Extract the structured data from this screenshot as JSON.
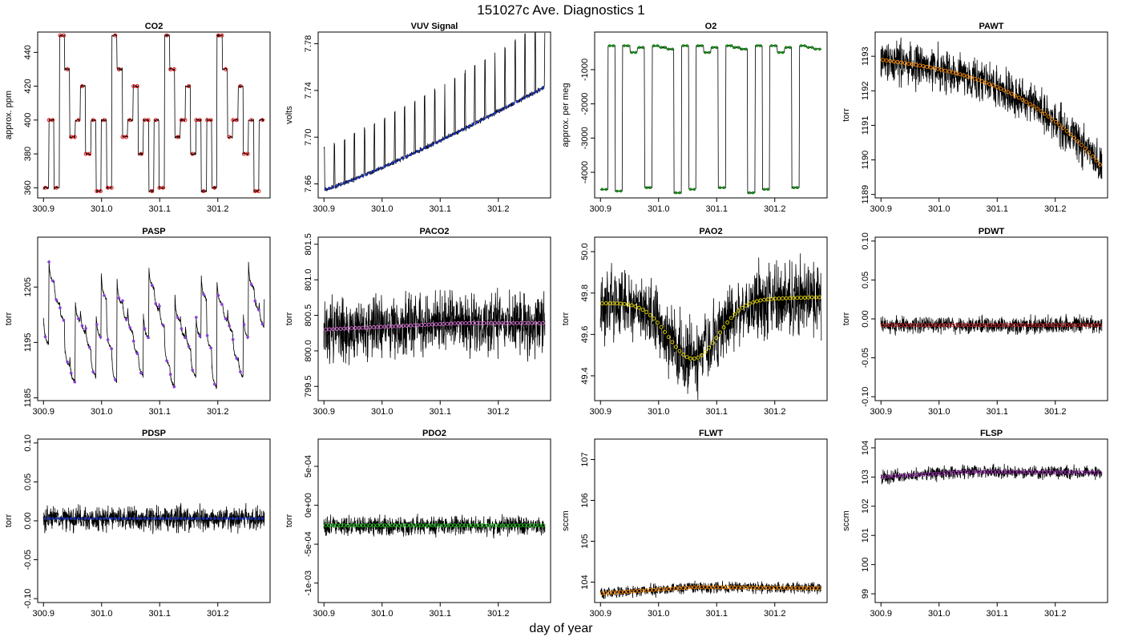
{
  "figure": {
    "title": "151027c   Ave. Diagnostics 1",
    "xlabel": "day of year"
  },
  "chart_data": [
    {
      "type": "line",
      "title": "CO2",
      "ylabel": "approx. ppm",
      "xlim": [
        300.89,
        301.29
      ],
      "ylim": [
        354,
        452
      ],
      "xticks": [
        300.9,
        301.0,
        301.1,
        301.2
      ],
      "xtick_labels": [
        "300.9",
        "301.0",
        "301.1",
        "301.2"
      ],
      "yticks": [
        360,
        380,
        400,
        420,
        440
      ],
      "ytick_labels": [
        "360",
        "380",
        "400",
        "420",
        "440"
      ],
      "pattern": "co2",
      "marker_color": "#e00000",
      "marker_style": "open-circle",
      "noise": 0.8,
      "base": 0,
      "amp": 1
    },
    {
      "type": "line",
      "title": "VUV Signal",
      "ylabel": "volts",
      "xlim": [
        300.89,
        301.29
      ],
      "ylim": [
        7.648,
        7.79
      ],
      "xticks": [
        300.9,
        301.0,
        301.1,
        301.2
      ],
      "xtick_labels": [
        "300.9",
        "301.0",
        "301.1",
        "301.2"
      ],
      "yticks": [
        7.66,
        7.7,
        7.74,
        7.78
      ],
      "ytick_labels": [
        "7.66",
        "7.70",
        "7.74",
        "7.78"
      ],
      "pattern": "vuv",
      "marker_color": "#1a2ea8",
      "marker_style": "filled-dot",
      "noise": 0.003,
      "base": 7.655,
      "amp": 0.09
    },
    {
      "type": "line",
      "title": "O2",
      "ylabel": "approx. per meg",
      "xlim": [
        300.89,
        301.29
      ],
      "ylim": [
        -4750,
        100
      ],
      "xticks": [
        300.9,
        301.0,
        301.1,
        301.2
      ],
      "xtick_labels": [
        "300.9",
        "301.0",
        "301.1",
        "301.2"
      ],
      "yticks": [
        -4000,
        -3000,
        -2000,
        -1000
      ],
      "ytick_labels": [
        "-4000",
        "-3000",
        "-2000",
        "-1000"
      ],
      "pattern": "o2",
      "marker_color": "#1a8a1a",
      "marker_style": "filled-dot",
      "noise": 20,
      "base": 0,
      "amp": 1
    },
    {
      "type": "line",
      "title": "PAWT",
      "ylabel": "torr",
      "xlim": [
        300.89,
        301.29
      ],
      "ylim": [
        1188.9,
        1193.7
      ],
      "xticks": [
        300.9,
        301.0,
        301.1,
        301.2
      ],
      "xtick_labels": [
        "300.9",
        "301.0",
        "301.1",
        "301.2"
      ],
      "yticks": [
        1189,
        1190,
        1191,
        1192,
        1193
      ],
      "ytick_labels": [
        "1189",
        "1190",
        "1191",
        "1192",
        "1193"
      ],
      "pattern": "pawt",
      "marker_color": "#ff8c00",
      "marker_style": "open-circle",
      "noise": 0.6,
      "base": 0,
      "amp": 1
    },
    {
      "type": "line",
      "title": "PASP",
      "ylabel": "torr",
      "xlim": [
        300.89,
        301.29
      ],
      "ylim": [
        1184.5,
        1214
      ],
      "xticks": [
        300.9,
        301.0,
        301.1,
        301.2
      ],
      "xtick_labels": [
        "300.9",
        "301.0",
        "301.1",
        "301.2"
      ],
      "yticks": [
        1185,
        1195,
        1205
      ],
      "ytick_labels": [
        "1185",
        "1195",
        "1205"
      ],
      "pattern": "pasp",
      "marker_color": "#8a3fd6",
      "marker_style": "filled-dot",
      "noise": 0.4,
      "base": 0,
      "amp": 1
    },
    {
      "type": "line",
      "title": "PACO2",
      "ylabel": "torr",
      "xlim": [
        300.89,
        301.29
      ],
      "ylim": [
        799.3,
        801.6
      ],
      "xticks": [
        300.9,
        301.0,
        301.1,
        301.2
      ],
      "xtick_labels": [
        "300.9",
        "301.0",
        "301.1",
        "301.2"
      ],
      "yticks": [
        799.5,
        800.0,
        800.5,
        801.0,
        801.5
      ],
      "ytick_labels": [
        "799.5",
        "800.0",
        "800.5",
        "801.0",
        "801.5"
      ],
      "pattern": "flatband",
      "marker_color": "#da70d6",
      "marker_style": "open-circle",
      "noise": 0.42,
      "base": 800.3,
      "amp": 0.18
    },
    {
      "type": "line",
      "title": "PAO2",
      "ylabel": "torr",
      "xlim": [
        300.89,
        301.29
      ],
      "ylim": [
        49.28,
        50.07
      ],
      "xticks": [
        300.9,
        301.0,
        301.1,
        301.2
      ],
      "xtick_labels": [
        "300.9",
        "301.0",
        "301.1",
        "301.2"
      ],
      "yticks": [
        49.4,
        49.6,
        49.8,
        50.0
      ],
      "ytick_labels": [
        "49.4",
        "49.6",
        "49.8",
        "50.0"
      ],
      "pattern": "pao2",
      "marker_color": "#e6d800",
      "marker_style": "open-circle",
      "noise": 0.17,
      "base": 0,
      "amp": 1
    },
    {
      "type": "line",
      "title": "PDWT",
      "ylabel": "torr",
      "xlim": [
        300.89,
        301.29
      ],
      "ylim": [
        -0.105,
        0.105
      ],
      "xticks": [
        300.9,
        301.0,
        301.1,
        301.2
      ],
      "xtick_labels": [
        "300.9",
        "301.0",
        "301.1",
        "301.2"
      ],
      "yticks": [
        -0.1,
        -0.05,
        0.0,
        0.05,
        0.1
      ],
      "ytick_labels": [
        "-0.10",
        "-0.05",
        "0.00",
        "0.05",
        "0.10"
      ],
      "pattern": "flatband",
      "marker_color": "#cc2222",
      "marker_style": "open-circle",
      "noise": 0.011,
      "base": -0.008,
      "amp": 0
    },
    {
      "type": "line",
      "title": "PDSP",
      "ylabel": "torr",
      "xlim": [
        300.89,
        301.29
      ],
      "ylim": [
        -0.105,
        0.105
      ],
      "xticks": [
        300.9,
        301.0,
        301.1,
        301.2
      ],
      "xtick_labels": [
        "300.9",
        "301.0",
        "301.1",
        "301.2"
      ],
      "yticks": [
        -0.1,
        -0.05,
        0.0,
        0.05,
        0.1
      ],
      "ytick_labels": [
        "-0.10",
        "-0.05",
        "0.00",
        "0.05",
        "0.10"
      ],
      "pattern": "flatband",
      "marker_color": "#1a2ea8",
      "marker_style": "filled-dot",
      "noise": 0.016,
      "base": 0.003,
      "amp": 0
    },
    {
      "type": "line",
      "title": "PDO2",
      "ylabel": "torr",
      "xlim": [
        300.89,
        301.29
      ],
      "ylim": [
        -0.00125,
        0.00085
      ],
      "xticks": [
        300.9,
        301.0,
        301.1,
        301.2
      ],
      "xtick_labels": [
        "300.9",
        "301.0",
        "301.1",
        "301.2"
      ],
      "yticks": [
        -0.001,
        -0.0005,
        0.0,
        0.0005
      ],
      "ytick_labels": [
        "-1e-03",
        "-5e-04",
        "0e+00",
        "5e-04"
      ],
      "pattern": "flatband",
      "marker_color": "#22cc22",
      "marker_style": "open-circle",
      "noise": 0.00012,
      "base": -0.00026,
      "amp": 0
    },
    {
      "type": "line",
      "title": "FLWT",
      "ylabel": "sccm",
      "xlim": [
        300.89,
        301.29
      ],
      "ylim": [
        103.5,
        107.5
      ],
      "xticks": [
        300.9,
        301.0,
        301.1,
        301.2
      ],
      "xtick_labels": [
        "300.9",
        "301.0",
        "301.1",
        "301.2"
      ],
      "yticks": [
        104,
        105,
        106,
        107
      ],
      "ytick_labels": [
        "104",
        "105",
        "106",
        "107"
      ],
      "pattern": "flwt",
      "marker_color": "#ff8c00",
      "marker_style": "open-circle",
      "noise": 0.14,
      "base": 0,
      "amp": 1
    },
    {
      "type": "line",
      "title": "FLSP",
      "ylabel": "sccm",
      "xlim": [
        300.89,
        301.29
      ],
      "ylim": [
        98.7,
        104.3
      ],
      "xticks": [
        300.9,
        301.0,
        301.1,
        301.2
      ],
      "xtick_labels": [
        "300.9",
        "301.0",
        "301.1",
        "301.2"
      ],
      "yticks": [
        99,
        100,
        101,
        102,
        103,
        104
      ],
      "ytick_labels": [
        "99",
        "100",
        "101",
        "102",
        "103",
        "104"
      ],
      "pattern": "flsp",
      "marker_color": "#9a2ab0",
      "marker_style": "open-circle",
      "noise": 0.22,
      "base": 0,
      "amp": 1
    }
  ]
}
